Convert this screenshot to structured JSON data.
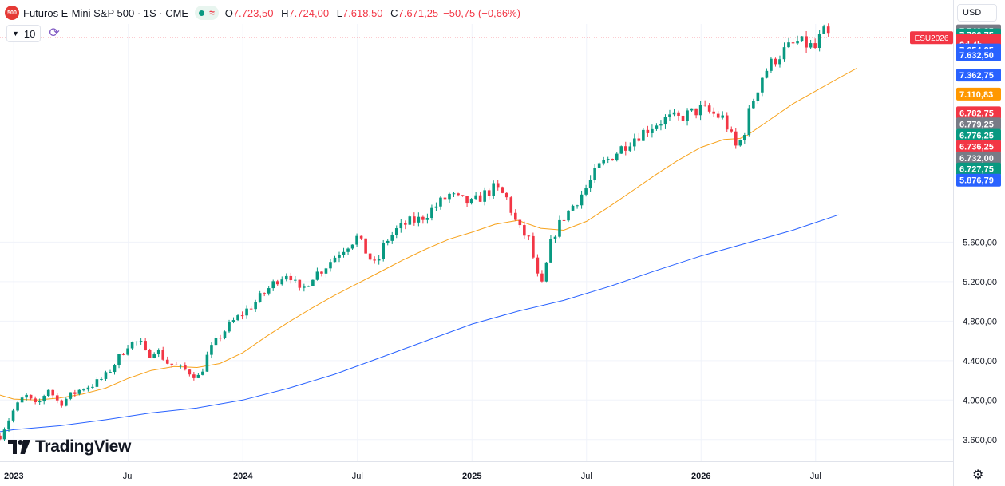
{
  "legend": {
    "symbol_badge": "500",
    "title": "Futuros E-Mini S&P 500 · 1S · CME",
    "market_wave": "≈",
    "ohlc": [
      {
        "k": "O",
        "v": "7.723,50"
      },
      {
        "k": "H",
        "v": "7.724,00"
      },
      {
        "k": "L",
        "v": "7.618,50"
      },
      {
        "k": "C",
        "v": "7.671,25"
      }
    ],
    "change": "−50,75 (−0,66%)"
  },
  "indicators_count": "10",
  "currency": "USD",
  "logo_text": "TradingView",
  "chart_data": {
    "type": "candlestick",
    "x_ticks": [
      {
        "label": "2023",
        "x": 2023.0
      },
      {
        "label": "Jul",
        "x": 2023.5
      },
      {
        "label": "2024",
        "x": 2024.0
      },
      {
        "label": "Jul",
        "x": 2024.5
      },
      {
        "label": "2025",
        "x": 2025.0
      },
      {
        "label": "Jul",
        "x": 2025.5
      },
      {
        "label": "2026",
        "x": 2026.0
      },
      {
        "label": "Jul",
        "x": 2026.5
      }
    ],
    "y_ticks": [
      {
        "label": "3.600,00",
        "v": 3600
      },
      {
        "label": "4.000,00",
        "v": 4000
      },
      {
        "label": "4.400,00",
        "v": 4400
      },
      {
        "label": "4.800,00",
        "v": 4800
      },
      {
        "label": "5.200,00",
        "v": 5200
      },
      {
        "label": "5.600,00",
        "v": 5600
      }
    ],
    "x_range": [
      2022.94,
      2027.1
    ],
    "ylim": [
      3380,
      7810
    ],
    "colors": {
      "up": "#089981",
      "down": "#f23645",
      "ma_short": "#f7a21b",
      "ma_long": "#2962ff"
    },
    "close_path": [
      [
        2022.94,
        3640
      ],
      [
        2023.0,
        3900
      ],
      [
        2023.05,
        4050
      ],
      [
        2023.1,
        3930
      ],
      [
        2023.15,
        4120
      ],
      [
        2023.2,
        3960
      ],
      [
        2023.25,
        4050
      ],
      [
        2023.3,
        4120
      ],
      [
        2023.35,
        4160
      ],
      [
        2023.4,
        4240
      ],
      [
        2023.45,
        4400
      ],
      [
        2023.5,
        4570
      ],
      [
        2023.55,
        4590
      ],
      [
        2023.58,
        4450
      ],
      [
        2023.62,
        4520
      ],
      [
        2023.67,
        4380
      ],
      [
        2023.72,
        4330
      ],
      [
        2023.77,
        4280
      ],
      [
        2023.81,
        4230
      ],
      [
        2023.85,
        4480
      ],
      [
        2023.9,
        4650
      ],
      [
        2023.95,
        4780
      ],
      [
        2024.0,
        4880
      ],
      [
        2024.05,
        4980
      ],
      [
        2024.1,
        5100
      ],
      [
        2024.15,
        5220
      ],
      [
        2024.2,
        5300
      ],
      [
        2024.25,
        5080
      ],
      [
        2024.3,
        5250
      ],
      [
        2024.35,
        5330
      ],
      [
        2024.4,
        5450
      ],
      [
        2024.45,
        5560
      ],
      [
        2024.5,
        5650
      ],
      [
        2024.55,
        5450
      ],
      [
        2024.58,
        5350
      ],
      [
        2024.62,
        5600
      ],
      [
        2024.67,
        5720
      ],
      [
        2024.72,
        5800
      ],
      [
        2024.77,
        5830
      ],
      [
        2024.81,
        5900
      ],
      [
        2024.85,
        5980
      ],
      [
        2024.9,
        6080
      ],
      [
        2024.95,
        6020
      ],
      [
        2025.0,
        5990
      ],
      [
        2025.05,
        6080
      ],
      [
        2025.1,
        6150
      ],
      [
        2025.15,
        6050
      ],
      [
        2025.2,
        5750
      ],
      [
        2025.25,
        5620
      ],
      [
        2025.3,
        5100
      ],
      [
        2025.35,
        5650
      ],
      [
        2025.4,
        5850
      ],
      [
        2025.45,
        6000
      ],
      [
        2025.5,
        6150
      ],
      [
        2025.55,
        6350
      ],
      [
        2025.6,
        6450
      ],
      [
        2025.65,
        6550
      ],
      [
        2025.7,
        6650
      ],
      [
        2025.75,
        6720
      ],
      [
        2025.8,
        6800
      ],
      [
        2025.85,
        6850
      ],
      [
        2025.9,
        6850
      ],
      [
        2025.95,
        6900
      ],
      [
        2026.0,
        6950
      ],
      [
        2026.05,
        6900
      ],
      [
        2026.1,
        6850
      ],
      [
        2026.15,
        6560
      ],
      [
        2026.18,
        6650
      ],
      [
        2026.22,
        7000
      ],
      [
        2026.27,
        7300
      ],
      [
        2026.32,
        7450
      ],
      [
        2026.37,
        7550
      ],
      [
        2026.42,
        7620
      ],
      [
        2026.46,
        7600
      ],
      [
        2026.5,
        7560
      ],
      [
        2026.52,
        7680
      ],
      [
        2026.54,
        7723
      ],
      [
        2026.56,
        7671
      ]
    ],
    "ma_short": [
      [
        2022.94,
        4050
      ],
      [
        2023.0,
        4010
      ],
      [
        2023.1,
        4000
      ],
      [
        2023.2,
        4020
      ],
      [
        2023.3,
        4060
      ],
      [
        2023.4,
        4120
      ],
      [
        2023.5,
        4220
      ],
      [
        2023.6,
        4300
      ],
      [
        2023.7,
        4340
      ],
      [
        2023.8,
        4330
      ],
      [
        2023.9,
        4370
      ],
      [
        2024.0,
        4480
      ],
      [
        2024.1,
        4640
      ],
      [
        2024.2,
        4790
      ],
      [
        2024.3,
        4930
      ],
      [
        2024.4,
        5060
      ],
      [
        2024.5,
        5180
      ],
      [
        2024.6,
        5300
      ],
      [
        2024.7,
        5420
      ],
      [
        2024.8,
        5530
      ],
      [
        2024.9,
        5630
      ],
      [
        2025.0,
        5700
      ],
      [
        2025.1,
        5780
      ],
      [
        2025.2,
        5820
      ],
      [
        2025.3,
        5740
      ],
      [
        2025.4,
        5720
      ],
      [
        2025.5,
        5810
      ],
      [
        2025.6,
        5960
      ],
      [
        2025.7,
        6120
      ],
      [
        2025.8,
        6280
      ],
      [
        2025.9,
        6430
      ],
      [
        2026.0,
        6560
      ],
      [
        2026.1,
        6640
      ],
      [
        2026.17,
        6650
      ],
      [
        2026.2,
        6680
      ],
      [
        2026.3,
        6840
      ],
      [
        2026.4,
        7000
      ],
      [
        2026.5,
        7130
      ],
      [
        2026.6,
        7260
      ],
      [
        2026.68,
        7362
      ]
    ],
    "ma_long": [
      [
        2022.94,
        3680
      ],
      [
        2023.0,
        3700
      ],
      [
        2023.2,
        3740
      ],
      [
        2023.4,
        3800
      ],
      [
        2023.6,
        3870
      ],
      [
        2023.8,
        3920
      ],
      [
        2024.0,
        4000
      ],
      [
        2024.2,
        4120
      ],
      [
        2024.4,
        4260
      ],
      [
        2024.6,
        4430
      ],
      [
        2024.8,
        4600
      ],
      [
        2025.0,
        4770
      ],
      [
        2025.2,
        4900
      ],
      [
        2025.4,
        5010
      ],
      [
        2025.6,
        5150
      ],
      [
        2025.8,
        5310
      ],
      [
        2026.0,
        5460
      ],
      [
        2026.2,
        5590
      ],
      [
        2026.4,
        5720
      ],
      [
        2026.6,
        5876
      ]
    ],
    "price_labels": [
      {
        "text": "7.740,25",
        "v": 7740,
        "bg": "#787b86"
      },
      {
        "text": "7.736,75",
        "v": 7700,
        "bg": "#089981"
      },
      {
        "text": "7.671,25",
        "v": 7646,
        "bg": "#f23645"
      },
      {
        "text": "2d 4h",
        "v": 7600,
        "bg": "#f23645"
      },
      {
        "text": "7.654,25",
        "v": 7546,
        "bg": "#2962ff"
      },
      {
        "text": "7.632,50",
        "v": 7496,
        "bg": "#2962ff"
      },
      {
        "text": "7.362,75",
        "v": 7292,
        "bg": "#2962ff"
      },
      {
        "text": "7.110,83",
        "v": 7100,
        "bg": "#ff9800"
      },
      {
        "text": "6.782,75",
        "v": 6910,
        "bg": "#f23645"
      },
      {
        "text": "6.779,25",
        "v": 6797,
        "bg": "#787b86"
      },
      {
        "text": "6.776,25",
        "v": 6681,
        "bg": "#089981"
      },
      {
        "text": "6.736,25",
        "v": 6569,
        "bg": "#f23645"
      },
      {
        "text": "6.732,00",
        "v": 6453,
        "bg": "#787b86"
      },
      {
        "text": "6.727,75",
        "v": 6341,
        "bg": "#089981"
      },
      {
        "text": "5.876,79",
        "v": 6228,
        "bg": "#2962ff"
      }
    ],
    "current_line_value": 7671,
    "contract_tag": "ESU2026"
  }
}
